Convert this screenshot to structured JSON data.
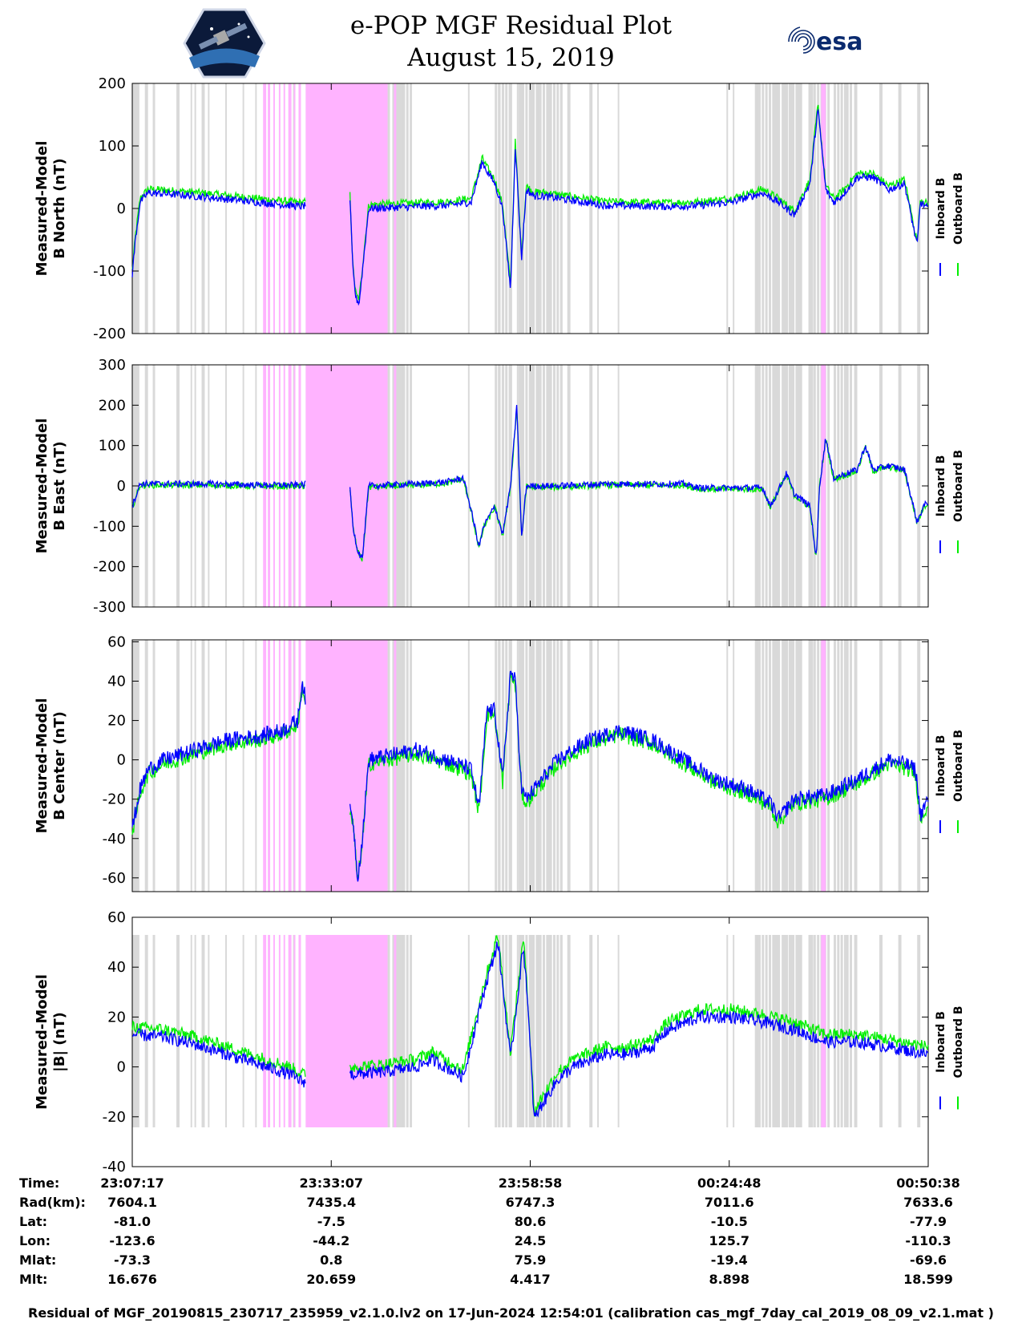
{
  "header": {
    "title_line1": "e-POP MGF Residual Plot",
    "title_line2": "August 15, 2019",
    "left_logo": "cassiope-mission-logo",
    "right_logo_text": "esa"
  },
  "colors": {
    "inboard": "#0000ff",
    "outboard": "#00ee00",
    "gray_shade": "#d9d9d9",
    "pink_shade": "#ffb3ff"
  },
  "chart_data": [
    {
      "type": "line",
      "ylabel_line1": "Measured-Model",
      "ylabel_line2": "B North (nT)",
      "ylim": [
        -200,
        200
      ],
      "yticks": [
        "200",
        "100",
        "0",
        "-100",
        "-200"
      ],
      "legend": [
        "Inboard B",
        "Outboard B"
      ],
      "features": [
        [
          0,
          -105
        ],
        [
          0.2,
          -50
        ],
        [
          0.5,
          10
        ],
        [
          1.0,
          25
        ],
        [
          3.0,
          22
        ],
        [
          6.0,
          15
        ],
        [
          8.0,
          10
        ],
        [
          10.8,
          3
        ],
        [
          11.0,
          5
        ],
        [
          13.8,
          25
        ],
        [
          14.0,
          -100
        ],
        [
          14.2,
          -145
        ],
        [
          14.4,
          -150
        ],
        [
          15.0,
          0
        ],
        [
          18.0,
          3
        ],
        [
          20.0,
          5
        ],
        [
          21.5,
          10
        ],
        [
          22.2,
          75
        ],
        [
          22.5,
          60
        ],
        [
          23.0,
          40
        ],
        [
          23.5,
          0
        ],
        [
          24.0,
          -130
        ],
        [
          24.3,
          100
        ],
        [
          24.7,
          -80
        ],
        [
          25.0,
          30
        ],
        [
          25.5,
          20
        ],
        [
          26.0,
          20
        ],
        [
          30.0,
          5
        ],
        [
          34.0,
          3
        ],
        [
          36.0,
          5
        ],
        [
          38.0,
          10
        ],
        [
          40.0,
          25
        ],
        [
          41.0,
          10
        ],
        [
          42.0,
          -10
        ],
        [
          43.0,
          40
        ],
        [
          43.5,
          160
        ],
        [
          44.0,
          30
        ],
        [
          44.5,
          10
        ],
        [
          45.0,
          20
        ],
        [
          46.0,
          50
        ],
        [
          47.0,
          50
        ],
        [
          48.0,
          30
        ],
        [
          49.0,
          40
        ],
        [
          49.8,
          -60
        ],
        [
          50.0,
          10
        ],
        [
          50.5,
          0
        ]
      ]
    },
    {
      "type": "line",
      "ylabel_line1": "Measured-Model",
      "ylabel_line2": "B East (nT)",
      "ylim": [
        -300,
        300
      ],
      "yticks": [
        "300",
        "200",
        "100",
        "0",
        "-100",
        "-200",
        "-300"
      ],
      "legend": [
        "Inboard B",
        "Outboard B"
      ],
      "features": [
        [
          0,
          -50
        ],
        [
          0.5,
          5
        ],
        [
          2.0,
          5
        ],
        [
          5.0,
          5
        ],
        [
          8.0,
          2
        ],
        [
          10.8,
          2
        ],
        [
          11.0,
          5
        ],
        [
          13.8,
          5
        ],
        [
          14.0,
          -100
        ],
        [
          14.3,
          -160
        ],
        [
          14.6,
          -180
        ],
        [
          15.0,
          0
        ],
        [
          18.0,
          5
        ],
        [
          20.0,
          10
        ],
        [
          21.0,
          20
        ],
        [
          21.5,
          -60
        ],
        [
          22.0,
          -150
        ],
        [
          22.3,
          -100
        ],
        [
          23.0,
          -50
        ],
        [
          23.5,
          -120
        ],
        [
          24.0,
          0
        ],
        [
          24.4,
          200
        ],
        [
          24.7,
          -130
        ],
        [
          25.0,
          0
        ],
        [
          27.0,
          0
        ],
        [
          30.0,
          5
        ],
        [
          33.0,
          5
        ],
        [
          35.0,
          5
        ],
        [
          36.0,
          -5
        ],
        [
          38.0,
          -5
        ],
        [
          40.0,
          -5
        ],
        [
          40.5,
          -50
        ],
        [
          41.5,
          30
        ],
        [
          42.0,
          -20
        ],
        [
          43.0,
          -50
        ],
        [
          43.4,
          -180
        ],
        [
          43.6,
          0
        ],
        [
          44.0,
          120
        ],
        [
          44.5,
          20
        ],
        [
          46.0,
          40
        ],
        [
          46.5,
          100
        ],
        [
          47.0,
          40
        ],
        [
          48.0,
          50
        ],
        [
          49.0,
          40
        ],
        [
          49.8,
          -90
        ],
        [
          50.2,
          -50
        ],
        [
          50.5,
          -40
        ]
      ]
    },
    {
      "type": "line",
      "ylabel_line1": "Measured-Model",
      "ylabel_line2": "B Center (nT)",
      "ylim": [
        -67,
        61
      ],
      "yticks": [
        "60",
        "40",
        "20",
        "0",
        "-20",
        "-40",
        "-60"
      ],
      "legend": [
        "Inboard B",
        "Outboard B"
      ],
      "features": [
        [
          0,
          -35
        ],
        [
          0.5,
          -15
        ],
        [
          1.0,
          -5
        ],
        [
          2.0,
          0
        ],
        [
          4.0,
          5
        ],
        [
          6.0,
          10
        ],
        [
          8.0,
          12
        ],
        [
          9.5,
          15
        ],
        [
          10.5,
          20
        ],
        [
          10.8,
          40
        ],
        [
          11.0,
          30
        ],
        [
          14.0,
          -30
        ],
        [
          14.3,
          -60
        ],
        [
          14.6,
          -40
        ],
        [
          15.0,
          0
        ],
        [
          18.0,
          5
        ],
        [
          20.0,
          0
        ],
        [
          21.5,
          -5
        ],
        [
          22.0,
          -25
        ],
        [
          22.5,
          25
        ],
        [
          23.0,
          25
        ],
        [
          23.5,
          -10
        ],
        [
          24.0,
          45
        ],
        [
          24.3,
          40
        ],
        [
          24.7,
          -15
        ],
        [
          25.0,
          -20
        ],
        [
          26.0,
          -10
        ],
        [
          27.0,
          0
        ],
        [
          29.0,
          10
        ],
        [
          31.0,
          15
        ],
        [
          33.0,
          10
        ],
        [
          35.0,
          0
        ],
        [
          37.0,
          -10
        ],
        [
          39.0,
          -15
        ],
        [
          40.5,
          -22
        ],
        [
          41.0,
          -30
        ],
        [
          41.5,
          -25
        ],
        [
          42.0,
          -20
        ],
        [
          44.0,
          -18
        ],
        [
          46.0,
          -10
        ],
        [
          48.0,
          0
        ],
        [
          49.0,
          -2
        ],
        [
          49.7,
          -5
        ],
        [
          50.0,
          -28
        ],
        [
          50.5,
          -20
        ]
      ]
    },
    {
      "type": "line",
      "ylabel_line1": "Measured-Model",
      "ylabel_line2": "|B| (nT)",
      "ylim": [
        -40,
        60
      ],
      "yticks": [
        "60",
        "40",
        "20",
        "0",
        "-20",
        "-40"
      ],
      "legend": [
        "Inboard B",
        "Outboard B"
      ],
      "features": [
        [
          0,
          13
        ],
        [
          2.0,
          12
        ],
        [
          4.0,
          9
        ],
        [
          6.0,
          5
        ],
        [
          8.0,
          1
        ],
        [
          10.0,
          -3
        ],
        [
          10.8,
          -6
        ],
        [
          12.0,
          -4
        ],
        [
          16.0,
          -2
        ],
        [
          18.0,
          0
        ],
        [
          19.0,
          3
        ],
        [
          21.0,
          -4
        ],
        [
          22.3,
          30
        ],
        [
          23.2,
          50
        ],
        [
          24.0,
          3
        ],
        [
          24.8,
          48
        ],
        [
          25.0,
          35
        ],
        [
          25.5,
          -21
        ],
        [
          26.0,
          -15
        ],
        [
          27.0,
          -5
        ],
        [
          28.0,
          0
        ],
        [
          30.0,
          5
        ],
        [
          31.5,
          5
        ],
        [
          33.0,
          8
        ],
        [
          34.0,
          15
        ],
        [
          36.0,
          20
        ],
        [
          38.0,
          20
        ],
        [
          40.0,
          18
        ],
        [
          42.0,
          15
        ],
        [
          44.0,
          10
        ],
        [
          46.0,
          10
        ],
        [
          48.0,
          8
        ],
        [
          50.5,
          5
        ]
      ]
    }
  ],
  "shading": {
    "gray_intervals": [
      [
        0.0,
        0.45
      ],
      [
        0.8,
        1.0
      ],
      [
        1.3,
        1.45
      ],
      [
        2.8,
        3.0
      ],
      [
        3.7,
        3.8
      ],
      [
        3.95,
        4.05
      ],
      [
        4.4,
        4.6
      ],
      [
        4.8,
        4.9
      ],
      [
        5.9,
        6.0
      ],
      [
        7.0,
        7.1
      ],
      [
        7.8,
        7.9
      ],
      [
        10.2,
        10.3
      ],
      [
        10.6,
        10.7
      ],
      [
        16.2,
        16.35
      ],
      [
        16.8,
        17.3
      ],
      [
        21.3,
        21.4
      ],
      [
        23.2,
        23.3
      ],
      [
        23.5,
        23.6
      ],
      [
        23.7,
        23.8
      ],
      [
        24.0,
        24.1
      ],
      [
        24.4,
        24.5
      ],
      [
        24.6,
        24.8
      ],
      [
        25.3,
        25.5
      ],
      [
        25.7,
        25.9
      ],
      [
        26.3,
        26.5
      ],
      [
        27.2,
        27.3
      ],
      [
        27.6,
        27.8
      ],
      [
        29.0,
        29.2
      ],
      [
        29.5,
        29.6
      ],
      [
        30.8,
        30.9
      ],
      [
        37.7,
        37.8
      ],
      [
        38.1,
        38.2
      ],
      [
        39.6,
        39.8
      ],
      [
        40.7,
        41.1
      ],
      [
        41.3,
        41.6
      ],
      [
        41.7,
        42.0
      ],
      [
        42.2,
        42.5
      ],
      [
        42.9,
        43.2
      ],
      [
        45.8,
        46.0
      ],
      [
        47.4,
        47.6
      ],
      [
        48.6,
        48.8
      ],
      [
        49.8,
        50.0
      ]
    ],
    "gray_bands": [
      [
        16.5,
        17.6
      ],
      [
        23.0,
        24.0
      ],
      [
        24.5,
        27.3
      ],
      [
        39.5,
        40.7
      ],
      [
        41.2,
        42.4
      ],
      [
        43.0,
        44.2
      ],
      [
        44.5,
        45.2
      ],
      [
        45.3,
        45.6
      ]
    ],
    "pink_intervals": [
      [
        8.3,
        8.5
      ],
      [
        8.6,
        8.75
      ],
      [
        8.95,
        9.05
      ],
      [
        9.3,
        9.4
      ],
      [
        9.6,
        9.7
      ],
      [
        9.9,
        10.1
      ],
      [
        10.25,
        10.35
      ],
      [
        10.55,
        10.7
      ],
      [
        11.0,
        16.2
      ],
      [
        16.6,
        16.75
      ],
      [
        43.7,
        44.0
      ]
    ]
  },
  "xaxis": {
    "ticks": [
      "23:07:17",
      "23:33:07",
      "23:58:58",
      "00:24:48",
      "00:50:38"
    ]
  },
  "info_table": {
    "labels": [
      "Time:",
      "Rad(km):",
      "Lat:",
      "Lon:",
      "Mlat:",
      "Mlt:"
    ],
    "columns": [
      [
        "23:07:17",
        "7604.1",
        "-81.0",
        "-123.6",
        "-73.3",
        "16.676"
      ],
      [
        "23:33:07",
        "7435.4",
        "-7.5",
        "-44.2",
        "0.8",
        "20.659"
      ],
      [
        "23:58:58",
        "6747.3",
        "80.6",
        "24.5",
        "75.9",
        "4.417"
      ],
      [
        "00:24:48",
        "7011.6",
        "-10.5",
        "125.7",
        "-19.4",
        "8.898"
      ],
      [
        "00:50:38",
        "7633.6",
        "-77.9",
        "-110.3",
        "-69.6",
        "18.599"
      ]
    ]
  },
  "footer": {
    "text": "Residual of MGF_20190815_230717_235959_v2.1.0.lv2 on 17-Jun-2024 12:54:01 (calibration cas_mgf_7day_cal_2019_08_09_v2.1.mat )"
  }
}
